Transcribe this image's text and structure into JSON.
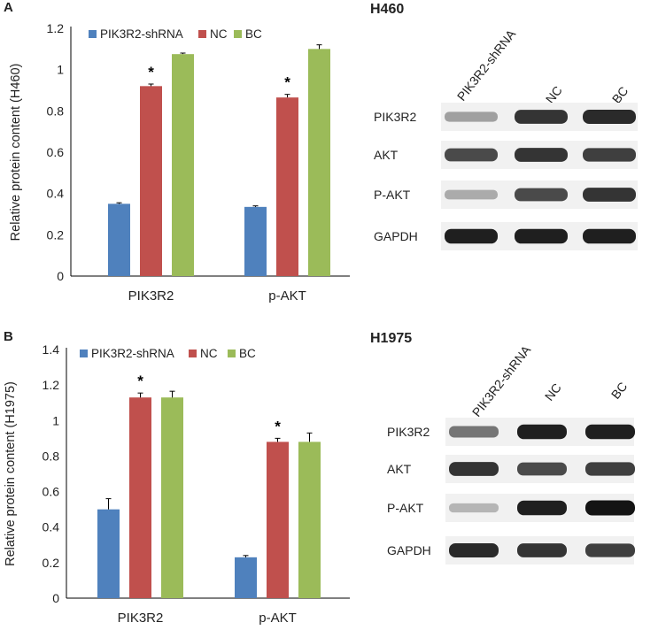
{
  "panels": [
    {
      "letter": "A",
      "blot_title": "H460"
    },
    {
      "letter": "B",
      "blot_title": "H1975"
    }
  ],
  "chart_data": [
    {
      "type": "bar",
      "panel": "A",
      "title": "",
      "xlabel": "",
      "ylabel": "Relative protein content (H460)",
      "categories": [
        "PIK3R2",
        "p-AKT"
      ],
      "ylim": [
        0,
        1.2
      ],
      "yticks": [
        0,
        0.2,
        0.4,
        0.6,
        0.8,
        1,
        1.2
      ],
      "ytick_labels": [
        "0",
        "0.2",
        "0.4",
        "0.6",
        "0.8",
        "1",
        "1.2"
      ],
      "legend_position": "top",
      "series": [
        {
          "name": "PIK3R2-shRNA",
          "color": "#4f81bd",
          "values": [
            0.35,
            0.335
          ],
          "errors": [
            0.005,
            0.005
          ]
        },
        {
          "name": "NC",
          "color": "#c0504d",
          "values": [
            0.92,
            0.865
          ],
          "errors": [
            0.01,
            0.015
          ]
        },
        {
          "name": "BC",
          "color": "#9bbb59",
          "values": [
            1.075,
            1.1
          ],
          "errors": [
            0.005,
            0.02
          ]
        }
      ],
      "annotations": [
        {
          "category": 0,
          "series": 1,
          "text": "*"
        },
        {
          "category": 1,
          "series": 1,
          "text": "*"
        }
      ]
    },
    {
      "type": "bar",
      "panel": "B",
      "title": "",
      "xlabel": "",
      "ylabel": "Relative protein content (H1975)",
      "categories": [
        "PIK3R2",
        "p-AKT"
      ],
      "ylim": [
        0,
        1.4
      ],
      "yticks": [
        0,
        0.2,
        0.4,
        0.6,
        0.8,
        1,
        1.2,
        1.4
      ],
      "ytick_labels": [
        "0",
        "0.2",
        "0.4",
        "0.6",
        "0.8",
        "1",
        "1.2",
        "1.4"
      ],
      "legend_position": "top",
      "series": [
        {
          "name": "PIK3R2-shRNA",
          "color": "#4f81bd",
          "values": [
            0.5,
            0.23
          ],
          "errors": [
            0.06,
            0.01
          ]
        },
        {
          "name": "NC",
          "color": "#c0504d",
          "values": [
            1.13,
            0.88
          ],
          "errors": [
            0.025,
            0.02
          ]
        },
        {
          "name": "BC",
          "color": "#9bbb59",
          "values": [
            1.13,
            0.88
          ],
          "errors": [
            0.035,
            0.05
          ]
        }
      ],
      "annotations": [
        {
          "category": 0,
          "series": 1,
          "text": "*"
        },
        {
          "category": 1,
          "series": 1,
          "text": "*"
        }
      ]
    }
  ],
  "blots": [
    {
      "lanes": [
        "PIK3R2-shRNA",
        "NC",
        "BC"
      ],
      "rows": [
        {
          "label": "PIK3R2",
          "intensity": [
            0.35,
            0.85,
            0.9
          ]
        },
        {
          "label": "AKT",
          "intensity": [
            0.75,
            0.85,
            0.8
          ]
        },
        {
          "label": "P-AKT",
          "intensity": [
            0.3,
            0.75,
            0.85
          ]
        },
        {
          "label": "GAPDH",
          "intensity": [
            0.95,
            0.95,
            0.95
          ]
        }
      ]
    },
    {
      "lanes": [
        "PIK3R2-shRNA",
        "NC",
        "BC"
      ],
      "rows": [
        {
          "label": "PIK3R2",
          "intensity": [
            0.55,
            0.95,
            0.95
          ]
        },
        {
          "label": "AKT",
          "intensity": [
            0.85,
            0.75,
            0.8
          ]
        },
        {
          "label": "P-AKT",
          "intensity": [
            0.25,
            0.95,
            1.0
          ]
        },
        {
          "label": "GAPDH",
          "intensity": [
            0.9,
            0.85,
            0.8
          ]
        }
      ]
    }
  ]
}
